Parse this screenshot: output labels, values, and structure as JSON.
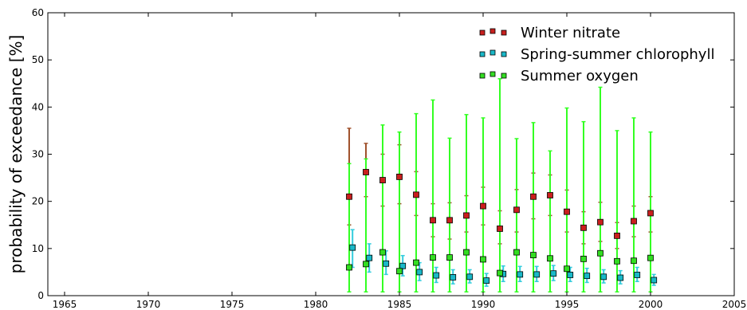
{
  "chart_data": {
    "type": "scatter",
    "ylabel": "probability of exceedance [%]",
    "xlabel": "",
    "xlim": [
      1964,
      2005
    ],
    "ylim": [
      0,
      60
    ],
    "x_ticks": [
      1965,
      1970,
      1975,
      1980,
      1985,
      1990,
      1995,
      2000,
      2005
    ],
    "y_ticks": [
      0,
      10,
      20,
      30,
      40,
      50,
      60
    ],
    "grid": false,
    "legend_position": "top-right",
    "series": [
      {
        "name": "Winter nitrate",
        "color": "#c8201e",
        "bar_color": "#a0522d",
        "offset": 0,
        "points": [
          {
            "x": 1982,
            "y": 21,
            "low": 15,
            "high": 35.5
          },
          {
            "x": 1983,
            "y": 26.2,
            "low": 21,
            "high": 32.3
          },
          {
            "x": 1984,
            "y": 24.5,
            "low": 19,
            "high": 30
          },
          {
            "x": 1985,
            "y": 25.2,
            "low": 19.5,
            "high": 32
          },
          {
            "x": 1986,
            "y": 21.4,
            "low": 17,
            "high": 26.3
          },
          {
            "x": 1987,
            "y": 16,
            "low": 12.5,
            "high": 19.5
          },
          {
            "x": 1988,
            "y": 16,
            "low": 12,
            "high": 19.7
          },
          {
            "x": 1989,
            "y": 17,
            "low": 13.5,
            "high": 21.2
          },
          {
            "x": 1990,
            "y": 19,
            "low": 15,
            "high": 23
          },
          {
            "x": 1991,
            "y": 14.2,
            "low": 11,
            "high": 18
          },
          {
            "x": 1992,
            "y": 18.2,
            "low": 13.5,
            "high": 22.5
          },
          {
            "x": 1993,
            "y": 21,
            "low": 16.3,
            "high": 26
          },
          {
            "x": 1994,
            "y": 21.3,
            "low": 17,
            "high": 25.6
          },
          {
            "x": 1995,
            "y": 17.8,
            "low": 13.5,
            "high": 22.4
          },
          {
            "x": 1996,
            "y": 14.4,
            "low": 11,
            "high": 17.8
          },
          {
            "x": 1997,
            "y": 15.6,
            "low": 11.5,
            "high": 19.8
          },
          {
            "x": 1998,
            "y": 12.7,
            "low": 10,
            "high": 15.5
          },
          {
            "x": 1999,
            "y": 15.8,
            "low": 12.5,
            "high": 19
          },
          {
            "x": 2000,
            "y": 17.5,
            "low": 13.5,
            "high": 21
          }
        ]
      },
      {
        "name": "Spring-summer chlorophyll",
        "color": "#1ab8c8",
        "bar_color": "#33ccdd",
        "offset": 0.2,
        "points": [
          {
            "x": 1982,
            "y": 10.2,
            "low": 6,
            "high": 14
          },
          {
            "x": 1983,
            "y": 8,
            "low": 5,
            "high": 11
          },
          {
            "x": 1984,
            "y": 6.8,
            "low": 4.5,
            "high": 9.5
          },
          {
            "x": 1985,
            "y": 6.3,
            "low": 4.2,
            "high": 8.5
          },
          {
            "x": 1986,
            "y": 5,
            "low": 3.2,
            "high": 7
          },
          {
            "x": 1987,
            "y": 4.3,
            "low": 2.8,
            "high": 6
          },
          {
            "x": 1988,
            "y": 3.9,
            "low": 2.5,
            "high": 5.5
          },
          {
            "x": 1989,
            "y": 4,
            "low": 2.7,
            "high": 5.5
          },
          {
            "x": 1990,
            "y": 3.2,
            "low": 2,
            "high": 4.7
          },
          {
            "x": 1991,
            "y": 4.6,
            "low": 3,
            "high": 6.3
          },
          {
            "x": 1992,
            "y": 4.5,
            "low": 3,
            "high": 6.2
          },
          {
            "x": 1993,
            "y": 4.5,
            "low": 3,
            "high": 6.2
          },
          {
            "x": 1994,
            "y": 4.7,
            "low": 3.2,
            "high": 6.4
          },
          {
            "x": 1995,
            "y": 4.4,
            "low": 3,
            "high": 6
          },
          {
            "x": 1996,
            "y": 4.2,
            "low": 2.8,
            "high": 5.8
          },
          {
            "x": 1997,
            "y": 4,
            "low": 2.7,
            "high": 5.5
          },
          {
            "x": 1998,
            "y": 3.8,
            "low": 2.5,
            "high": 5.3
          },
          {
            "x": 1999,
            "y": 4.4,
            "low": 3,
            "high": 6
          },
          {
            "x": 2000,
            "y": 3.3,
            "low": 2.2,
            "high": 4.5
          }
        ]
      },
      {
        "name": "Summer oxygen",
        "color": "#33dd22",
        "bar_color": "#33ff22",
        "offset": 0,
        "points": [
          {
            "x": 1982,
            "y": 6,
            "low": 0.8,
            "high": 28
          },
          {
            "x": 1983,
            "y": 6.7,
            "low": 0.8,
            "high": 29
          },
          {
            "x": 1984,
            "y": 9.2,
            "low": 0.8,
            "high": 36.2
          },
          {
            "x": 1985,
            "y": 5.2,
            "low": 0.8,
            "high": 34.7
          },
          {
            "x": 1986,
            "y": 7,
            "low": 0.8,
            "high": 38.6
          },
          {
            "x": 1987,
            "y": 8.1,
            "low": 0.8,
            "high": 41.5
          },
          {
            "x": 1988,
            "y": 8.1,
            "low": 0.8,
            "high": 33.4
          },
          {
            "x": 1989,
            "y": 9.2,
            "low": 0.8,
            "high": 38.4
          },
          {
            "x": 1990,
            "y": 7.7,
            "low": 0.8,
            "high": 37.7
          },
          {
            "x": 1991,
            "y": 4.8,
            "low": 0.8,
            "high": 46
          },
          {
            "x": 1992,
            "y": 9.2,
            "low": 0.8,
            "high": 33.3
          },
          {
            "x": 1993,
            "y": 8.6,
            "low": 0.8,
            "high": 36.7
          },
          {
            "x": 1994,
            "y": 7.9,
            "low": 0.8,
            "high": 30.7
          },
          {
            "x": 1995,
            "y": 5.7,
            "low": 0.8,
            "high": 39.8
          },
          {
            "x": 1996,
            "y": 7.8,
            "low": 0.8,
            "high": 36.9
          },
          {
            "x": 1997,
            "y": 9,
            "low": 0.8,
            "high": 44.2
          },
          {
            "x": 1998,
            "y": 7.3,
            "low": 0.8,
            "high": 35
          },
          {
            "x": 1999,
            "y": 7.4,
            "low": 0.8,
            "high": 37.7
          },
          {
            "x": 2000,
            "y": 8,
            "low": 0.8,
            "high": 34.7
          }
        ]
      }
    ]
  }
}
